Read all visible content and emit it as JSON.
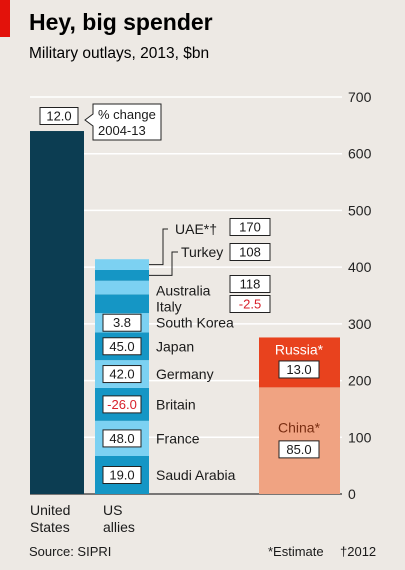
{
  "title": "Hey, big spender",
  "subtitle": "Military outlays, 2013, $bn",
  "source": "Source: SIPRI",
  "footnote_estimate": "*Estimate",
  "footnote_dagger": "†2012",
  "pct_change_label_line1": "% change",
  "pct_change_label_line2": "2004-13",
  "colors": {
    "background": "#ede9e4",
    "us": "#0c3d52",
    "allies_dark": "#1596c5",
    "allies_light": "#7cd1f2",
    "china": "#f0a382",
    "russia": "#e8421e",
    "accent_red": "#e3120b",
    "negative_text": "#d7212b"
  },
  "chart_data": {
    "type": "bar",
    "stacked": true,
    "ylim": [
      0,
      700
    ],
    "yticks": [
      0,
      100,
      200,
      300,
      400,
      500,
      600,
      700
    ],
    "grid": true,
    "axis_side": "right",
    "columns": [
      {
        "label": [
          "United",
          "States"
        ],
        "segments": [
          {
            "name": "United States",
            "value": 640,
            "pct_change": "12.0"
          }
        ]
      },
      {
        "label": [
          "US",
          "allies"
        ],
        "segments": [
          {
            "name": "Saudi Arabia",
            "value": 67,
            "pct_change": "19.0"
          },
          {
            "name": "France",
            "value": 62,
            "pct_change": "48.0"
          },
          {
            "name": "Britain",
            "value": 58,
            "pct_change": "-26.0"
          },
          {
            "name": "Germany",
            "value": 49,
            "pct_change": "42.0"
          },
          {
            "name": "Japan",
            "value": 49,
            "pct_change": "45.0"
          },
          {
            "name": "South Korea",
            "value": 34,
            "pct_change": "3.8"
          },
          {
            "name": "Italy",
            "value": 33,
            "pct_change": "-2.5"
          },
          {
            "name": "Australia",
            "value": 24,
            "pct_change": "118"
          },
          {
            "name": "Turkey",
            "value": 19,
            "pct_change": "108"
          },
          {
            "name": "UAE*†",
            "value": 19,
            "pct_change": "170"
          }
        ]
      },
      {
        "label": [],
        "segments": [
          {
            "name": "China*",
            "value": 188,
            "pct_change": "85.0"
          },
          {
            "name": "Russia*",
            "value": 88,
            "pct_change": "13.0"
          }
        ]
      }
    ]
  }
}
